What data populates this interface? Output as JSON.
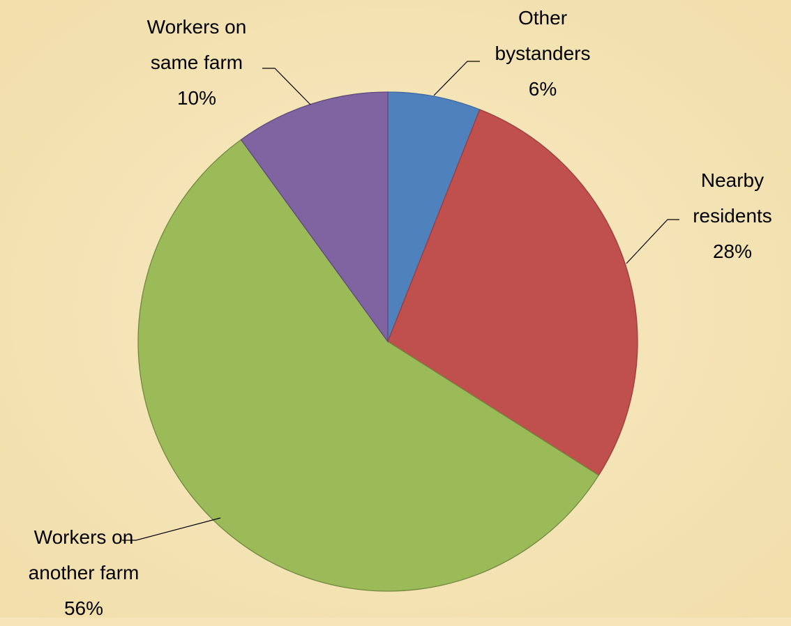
{
  "chart_data": {
    "type": "pie",
    "categories": [
      "Other\nbystanders",
      "Nearby\nresidents",
      "Workers on\nanother farm",
      "Workers on\nsame farm"
    ],
    "values": [
      6,
      28,
      56,
      10
    ],
    "value_labels": [
      "6%",
      "28%",
      "56%",
      "10%"
    ],
    "colors": [
      "#4f81bd",
      "#c0504d",
      "#9bbb59",
      "#8064a2"
    ]
  }
}
